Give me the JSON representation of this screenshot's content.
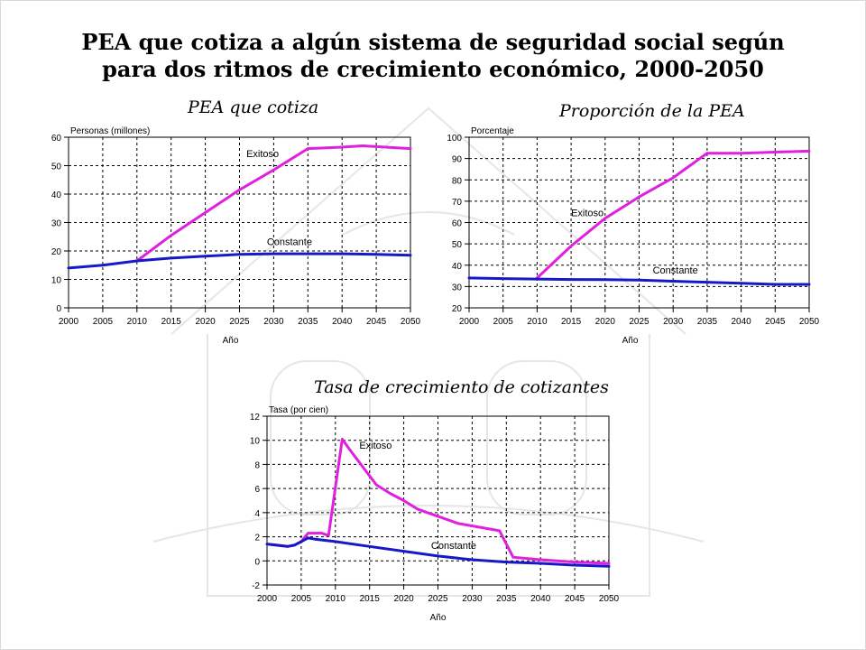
{
  "title": {
    "line1": "PEA que cotiza a algún sistema de seguridad social según",
    "line2": "para dos ritmos de crecimiento económico, 2000-2050"
  },
  "colors": {
    "exitoso": "#e020e0",
    "constante": "#1818c8"
  },
  "chart_data": [
    {
      "type": "line",
      "title": "PEA que cotiza",
      "ylabel": "Personas (millones)",
      "xlabel": "Año",
      "xlim": [
        2000,
        2050
      ],
      "ylim": [
        0,
        60
      ],
      "xticks": [
        2000,
        2005,
        2010,
        2015,
        2020,
        2025,
        2030,
        2035,
        2040,
        2045,
        2050
      ],
      "yticks": [
        0,
        10,
        20,
        30,
        40,
        50,
        60
      ],
      "grid": true,
      "series": [
        {
          "name": "Exitoso",
          "color": "#e020e0",
          "x": [
            2010,
            2015,
            2020,
            2025,
            2030,
            2035,
            2040,
            2043,
            2050
          ],
          "y": [
            16.5,
            25.5,
            33.5,
            41.5,
            48.5,
            56,
            56.5,
            57,
            56
          ]
        },
        {
          "name": "Constante",
          "color": "#1818c8",
          "x": [
            2000,
            2005,
            2010,
            2015,
            2020,
            2025,
            2030,
            2035,
            2040,
            2045,
            2050
          ],
          "y": [
            14,
            15,
            16.5,
            17.5,
            18.2,
            18.8,
            19,
            19,
            19,
            18.8,
            18.5
          ]
        }
      ],
      "annotations": [
        {
          "text": "Exitoso",
          "x": 2026,
          "y": 53
        },
        {
          "text": "Constante",
          "x": 2029,
          "y": 22
        }
      ]
    },
    {
      "type": "line",
      "title": "Proporción de la PEA",
      "ylabel": "Porcentaje",
      "xlabel": "Año",
      "xlim": [
        2000,
        2050
      ],
      "ylim": [
        20,
        100
      ],
      "xticks": [
        2000,
        2005,
        2010,
        2015,
        2020,
        2025,
        2030,
        2035,
        2040,
        2045,
        2050
      ],
      "yticks": [
        20,
        30,
        40,
        50,
        60,
        70,
        80,
        90,
        100
      ],
      "grid": true,
      "series": [
        {
          "name": "Exitoso",
          "color": "#e020e0",
          "x": [
            2010,
            2015,
            2020,
            2025,
            2030,
            2035,
            2040,
            2045,
            2050
          ],
          "y": [
            34,
            49,
            62,
            72,
            81,
            92.5,
            92.5,
            93,
            93.5
          ]
        },
        {
          "name": "Constante",
          "color": "#1818c8",
          "x": [
            2000,
            2005,
            2010,
            2015,
            2020,
            2025,
            2030,
            2035,
            2040,
            2045,
            2050
          ],
          "y": [
            34,
            33.7,
            33.5,
            33.3,
            33.2,
            33,
            32.5,
            32,
            31.5,
            31,
            31
          ]
        }
      ],
      "annotations": [
        {
          "text": "Exitoso",
          "x": 2015,
          "y": 63
        },
        {
          "text": "Constante",
          "x": 2027,
          "y": 36
        }
      ]
    },
    {
      "type": "line",
      "title": "Tasa de crecimiento de cotizantes",
      "ylabel": "Tasa (por cien)",
      "xlabel": "Año",
      "xlim": [
        2000,
        2050
      ],
      "ylim": [
        -2,
        12
      ],
      "xticks": [
        2000,
        2005,
        2010,
        2015,
        2020,
        2025,
        2030,
        2035,
        2040,
        2045,
        2050
      ],
      "yticks": [
        -2,
        0,
        2,
        4,
        6,
        8,
        10,
        12
      ],
      "grid": true,
      "series": [
        {
          "name": "Exitoso",
          "color": "#e020e0",
          "x": [
            2000,
            2003,
            2004,
            2005,
            2006,
            2008,
            2009,
            2011,
            2012,
            2014,
            2016,
            2018,
            2020,
            2022,
            2025,
            2028,
            2031,
            2034,
            2036,
            2040,
            2045,
            2050
          ],
          "y": [
            1.4,
            1.2,
            1.3,
            1.6,
            2.3,
            2.3,
            2.1,
            10.1,
            9.3,
            7.8,
            6.3,
            5.6,
            5.0,
            4.3,
            3.7,
            3.1,
            2.8,
            2.5,
            0.3,
            0.1,
            -0.1,
            -0.2
          ]
        },
        {
          "name": "Constante",
          "color": "#1818c8",
          "x": [
            2000,
            2003,
            2004,
            2005,
            2006,
            2007,
            2010,
            2015,
            2020,
            2025,
            2030,
            2035,
            2040,
            2045,
            2050
          ],
          "y": [
            1.4,
            1.2,
            1.3,
            1.6,
            1.9,
            1.8,
            1.6,
            1.2,
            0.8,
            0.4,
            0.1,
            -0.1,
            -0.2,
            -0.35,
            -0.45
          ]
        }
      ],
      "annotations": [
        {
          "text": "Exitoso",
          "x": 2013.5,
          "y": 9.3
        },
        {
          "text": "Constante",
          "x": 2024,
          "y": 1.0
        }
      ]
    }
  ]
}
